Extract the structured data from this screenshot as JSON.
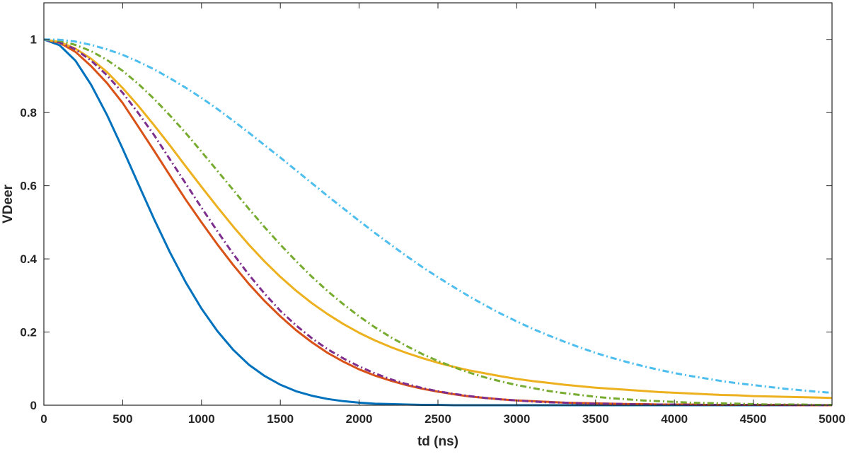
{
  "chart_data": {
    "type": "line",
    "title": "",
    "xlabel": "td (ns)",
    "ylabel": "VDeer",
    "xlim": [
      0,
      5000
    ],
    "ylim": [
      0,
      1.1
    ],
    "xticks": [
      0,
      500,
      1000,
      1500,
      2000,
      2500,
      3000,
      3500,
      4000,
      4500,
      5000
    ],
    "xtick_labels": [
      "0",
      "500",
      "1000",
      "1500",
      "2000",
      "2500",
      "3000",
      "3500",
      "4000",
      "4500",
      "5000"
    ],
    "yticks": [
      0,
      0.2,
      0.4,
      0.6,
      0.8,
      1
    ],
    "ytick_labels": [
      "0",
      "0.2",
      "0.4",
      "0.6",
      "0.8",
      "1"
    ],
    "grid": false,
    "legend": "none",
    "x": [
      0,
      100,
      200,
      300,
      400,
      500,
      600,
      700,
      800,
      900,
      1000,
      1100,
      1200,
      1300,
      1400,
      1500,
      1600,
      1700,
      1800,
      1900,
      2000,
      2100,
      2200,
      2300,
      2400,
      2500,
      2600,
      2700,
      2800,
      2900,
      3000,
      3100,
      3200,
      3300,
      3400,
      3500,
      3600,
      3700,
      3800,
      3900,
      4000,
      4100,
      4200,
      4300,
      4400,
      4500,
      4600,
      4700,
      4800,
      4900,
      5000
    ],
    "series": [
      {
        "color": "#0072bd",
        "dash": "solid",
        "values": [
          1,
          0.984,
          0.942,
          0.876,
          0.794,
          0.701,
          0.604,
          0.508,
          0.418,
          0.336,
          0.264,
          0.203,
          0.152,
          0.111,
          0.08,
          0.056,
          0.038,
          0.026,
          0.017,
          0.011,
          0.007,
          0.004,
          0.003,
          0.002,
          0.001,
          0.001,
          0,
          0,
          0,
          0,
          0,
          0,
          0,
          0,
          0,
          0,
          0,
          0,
          0,
          0,
          0,
          0,
          0,
          0,
          0,
          0,
          0,
          0,
          0,
          0,
          0
        ]
      },
      {
        "color": "#d95319",
        "dash": "solid",
        "values": [
          1,
          0.991,
          0.966,
          0.927,
          0.881,
          0.826,
          0.761,
          0.695,
          0.628,
          0.562,
          0.5,
          0.44,
          0.384,
          0.332,
          0.285,
          0.243,
          0.205,
          0.172,
          0.143,
          0.119,
          0.098,
          0.081,
          0.067,
          0.055,
          0.045,
          0.037,
          0.03,
          0.024,
          0.02,
          0.016,
          0.013,
          0.011,
          0.009,
          0.007,
          0.006,
          0.005,
          0.004,
          0.003,
          0.003,
          0.002,
          0.002,
          0.002,
          0.001,
          0.001,
          0.001,
          0.001,
          0.001,
          0.001,
          0,
          0,
          0
        ]
      },
      {
        "color": "#edb120",
        "dash": "solid",
        "values": [
          1,
          0.993,
          0.975,
          0.947,
          0.911,
          0.867,
          0.818,
          0.765,
          0.71,
          0.653,
          0.597,
          0.542,
          0.489,
          0.439,
          0.393,
          0.351,
          0.313,
          0.279,
          0.249,
          0.222,
          0.198,
          0.177,
          0.159,
          0.143,
          0.129,
          0.116,
          0.105,
          0.095,
          0.087,
          0.079,
          0.072,
          0.066,
          0.061,
          0.056,
          0.052,
          0.048,
          0.045,
          0.042,
          0.039,
          0.036,
          0.034,
          0.032,
          0.03,
          0.028,
          0.027,
          0.025,
          0.024,
          0.023,
          0.022,
          0.021,
          0.02
        ]
      },
      {
        "color": "#7e2f8e",
        "dash": "dashdot",
        "values": [
          1,
          0.992,
          0.973,
          0.942,
          0.902,
          0.854,
          0.798,
          0.738,
          0.672,
          0.606,
          0.54,
          0.476,
          0.414,
          0.357,
          0.305,
          0.258,
          0.218,
          0.183,
          0.153,
          0.128,
          0.106,
          0.087,
          0.071,
          0.058,
          0.047,
          0.038,
          0.031,
          0.025,
          0.02,
          0.016,
          0.013,
          0.01,
          0.008,
          0.007,
          0.005,
          0.004,
          0.004,
          0.003,
          0.002,
          0.002,
          0.002,
          0.001,
          0.001,
          0.001,
          0.001,
          0.001,
          0,
          0,
          0,
          0,
          0
        ]
      },
      {
        "color": "#77ac30",
        "dash": "dashdot",
        "values": [
          1,
          0.996,
          0.985,
          0.968,
          0.944,
          0.914,
          0.878,
          0.837,
          0.792,
          0.744,
          0.693,
          0.641,
          0.589,
          0.537,
          0.487,
          0.439,
          0.394,
          0.351,
          0.312,
          0.276,
          0.243,
          0.213,
          0.186,
          0.162,
          0.14,
          0.121,
          0.104,
          0.089,
          0.076,
          0.065,
          0.055,
          0.047,
          0.039,
          0.033,
          0.028,
          0.023,
          0.019,
          0.016,
          0.013,
          0.011,
          0.009,
          0.007,
          0.006,
          0.005,
          0.004,
          0.003,
          0.002,
          0.002,
          0.002,
          0.001,
          0.001
        ]
      },
      {
        "color": "#4dbeee",
        "dash": "dashdot",
        "values": [
          1,
          0.999,
          0.994,
          0.985,
          0.973,
          0.958,
          0.939,
          0.918,
          0.894,
          0.868,
          0.84,
          0.81,
          0.778,
          0.745,
          0.711,
          0.677,
          0.642,
          0.607,
          0.572,
          0.538,
          0.504,
          0.471,
          0.439,
          0.408,
          0.378,
          0.35,
          0.323,
          0.297,
          0.273,
          0.25,
          0.229,
          0.209,
          0.191,
          0.174,
          0.158,
          0.143,
          0.13,
          0.118,
          0.107,
          0.097,
          0.088,
          0.08,
          0.073,
          0.066,
          0.06,
          0.055,
          0.05,
          0.045,
          0.041,
          0.037,
          0.034
        ]
      }
    ]
  }
}
